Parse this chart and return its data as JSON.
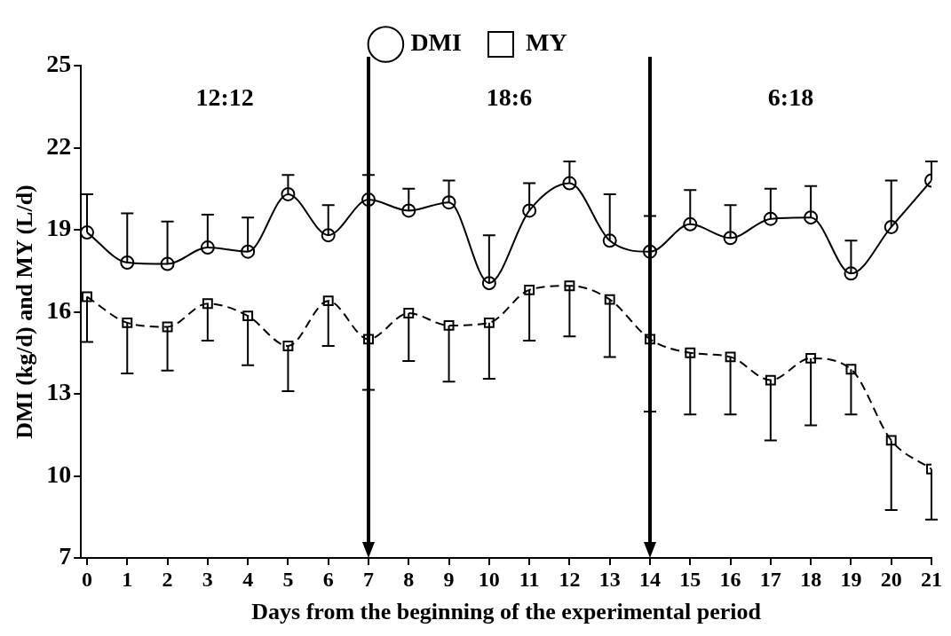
{
  "chart_data": {
    "type": "line",
    "xlabel": "Days from the beginning of the experimental period",
    "ylabel": "DMI (kg/d) and MY (L/d)",
    "x": [
      0,
      1,
      2,
      3,
      4,
      5,
      6,
      7,
      8,
      9,
      10,
      11,
      12,
      13,
      14,
      15,
      16,
      17,
      18,
      19,
      20,
      21
    ],
    "xlim": [
      -0.15,
      21
    ],
    "xticks": [
      0,
      1,
      2,
      3,
      4,
      5,
      6,
      7,
      8,
      9,
      10,
      11,
      12,
      13,
      14,
      15,
      16,
      17,
      18,
      19,
      20,
      21
    ],
    "ylim": [
      7,
      25
    ],
    "yticks": [
      7,
      10,
      13,
      16,
      19,
      22,
      25
    ],
    "series": [
      {
        "name": "DMI",
        "color": "#000000",
        "marker": "circle",
        "line_style": "solid",
        "values": [
          18.9,
          17.8,
          17.75,
          18.35,
          18.2,
          20.3,
          18.8,
          20.1,
          19.7,
          20.0,
          17.05,
          19.7,
          20.7,
          18.6,
          18.2,
          19.2,
          18.7,
          19.4,
          19.45,
          17.4,
          19.1,
          20.8
        ],
        "errors": [
          [
            18.9,
            20.3
          ],
          [
            17.8,
            19.6
          ],
          [
            17.75,
            19.3
          ],
          [
            18.35,
            19.55
          ],
          [
            18.2,
            19.45
          ],
          [
            20.3,
            21.0
          ],
          [
            18.8,
            19.9
          ],
          [
            20.1,
            21.0
          ],
          [
            19.7,
            20.5
          ],
          [
            20.0,
            20.8
          ],
          [
            17.05,
            18.8
          ],
          [
            19.7,
            20.7
          ],
          [
            20.7,
            21.5
          ],
          [
            18.6,
            20.3
          ],
          [
            18.2,
            19.5
          ],
          [
            19.2,
            20.45
          ],
          [
            18.7,
            19.9
          ],
          [
            19.4,
            20.5
          ],
          [
            19.45,
            20.6
          ],
          [
            17.4,
            18.6
          ],
          [
            19.1,
            20.8
          ],
          [
            20.8,
            21.5
          ]
        ]
      },
      {
        "name": "MY",
        "color": "#000000",
        "marker": "square",
        "line_style": "dashed",
        "values": [
          16.55,
          15.6,
          15.45,
          16.3,
          15.85,
          14.75,
          16.4,
          15.0,
          15.95,
          15.5,
          15.6,
          16.8,
          16.95,
          16.45,
          15.0,
          14.5,
          14.35,
          13.5,
          14.3,
          13.9,
          11.3,
          10.25
        ],
        "errors": [
          [
            14.9,
            16.55
          ],
          [
            13.75,
            15.6
          ],
          [
            13.85,
            15.45
          ],
          [
            14.95,
            16.3
          ],
          [
            14.05,
            15.85
          ],
          [
            13.1,
            14.75
          ],
          [
            14.75,
            16.4
          ],
          [
            13.15,
            15.0
          ],
          [
            14.2,
            15.95
          ],
          [
            13.45,
            15.5
          ],
          [
            13.55,
            15.6
          ],
          [
            14.95,
            16.8
          ],
          [
            15.1,
            16.95
          ],
          [
            14.35,
            16.45
          ],
          [
            12.35,
            15.0
          ],
          [
            12.25,
            14.5
          ],
          [
            12.25,
            14.35
          ],
          [
            11.3,
            13.5
          ],
          [
            11.85,
            14.3
          ],
          [
            12.25,
            13.9
          ],
          [
            8.75,
            11.3
          ],
          [
            8.4,
            10.25
          ]
        ]
      }
    ],
    "ref_lines": [
      {
        "axis": "x",
        "value": 7,
        "color": "#000000"
      },
      {
        "axis": "x",
        "value": 14,
        "color": "#000000"
      }
    ],
    "annotations": [
      "12:12",
      "18:6",
      "6:18"
    ],
    "legend": "top",
    "grid": false
  }
}
